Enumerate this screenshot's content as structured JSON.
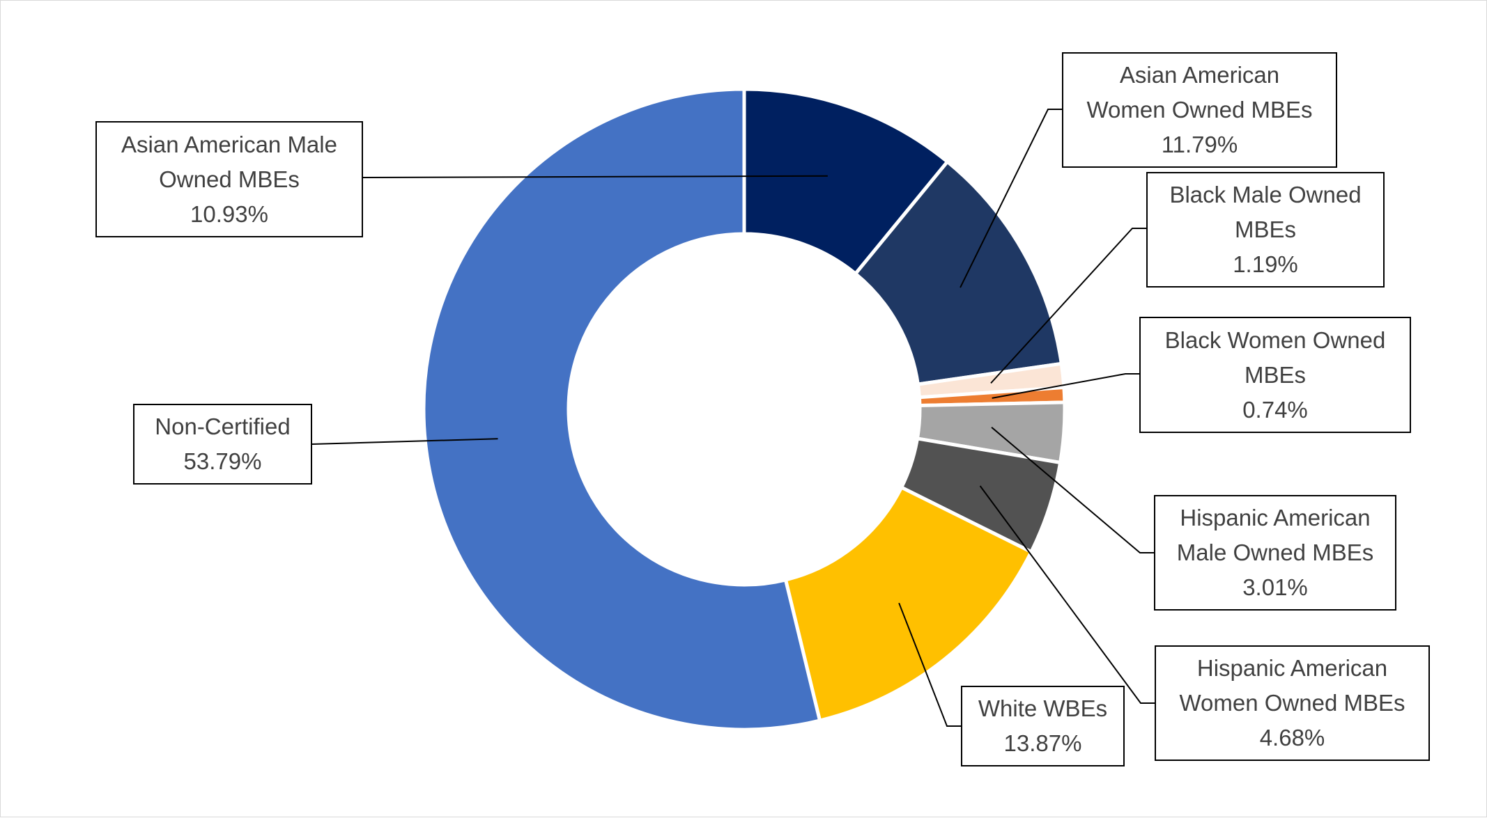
{
  "chart_data": {
    "type": "pie",
    "style": "donut",
    "legend": "none",
    "slices": [
      {
        "label": "Asian American Male Owned MBEs",
        "value": 10.93,
        "value_label": "10.93%",
        "color": "#002060"
      },
      {
        "label": "Asian American Women Owned MBEs",
        "value": 11.79,
        "value_label": "11.79%",
        "color": "#1F3864"
      },
      {
        "label": "Black Male Owned MBEs",
        "value": 1.19,
        "value_label": "1.19%",
        "color": "#FBE5D6"
      },
      {
        "label": "Black Women Owned MBEs",
        "value": 0.74,
        "value_label": "0.74%",
        "color": "#ED7D31"
      },
      {
        "label": "Hispanic American Male Owned MBEs",
        "value": 3.01,
        "value_label": "3.01%",
        "color": "#A5A5A5"
      },
      {
        "label": "Hispanic American Women Owned MBEs",
        "value": 4.68,
        "value_label": "4.68%",
        "color": "#525252"
      },
      {
        "label": "White WBEs",
        "value": 13.87,
        "value_label": "13.87%",
        "color": "#FFC000"
      },
      {
        "label": "Non-Certified",
        "value": 53.79,
        "value_label": "53.79%",
        "color": "#4472C4"
      }
    ],
    "callouts": [
      {
        "lines": [
          "Asian American Male",
          "Owned MBEs"
        ],
        "pct": "10.93%"
      },
      {
        "lines": [
          "Asian American",
          "Women Owned MBEs"
        ],
        "pct": "11.79%"
      },
      {
        "lines": [
          "Black Male Owned",
          "MBEs"
        ],
        "pct": "1.19%"
      },
      {
        "lines": [
          "Black Women Owned",
          "MBEs"
        ],
        "pct": "0.74%"
      },
      {
        "lines": [
          "Hispanic American",
          "Male Owned MBEs"
        ],
        "pct": "3.01%"
      },
      {
        "lines": [
          "Hispanic American",
          "Women Owned MBEs"
        ],
        "pct": "4.68%"
      },
      {
        "lines": [
          "White WBEs"
        ],
        "pct": "13.87%"
      },
      {
        "lines": [
          "Non-Certified"
        ],
        "pct": "53.79%"
      }
    ]
  }
}
